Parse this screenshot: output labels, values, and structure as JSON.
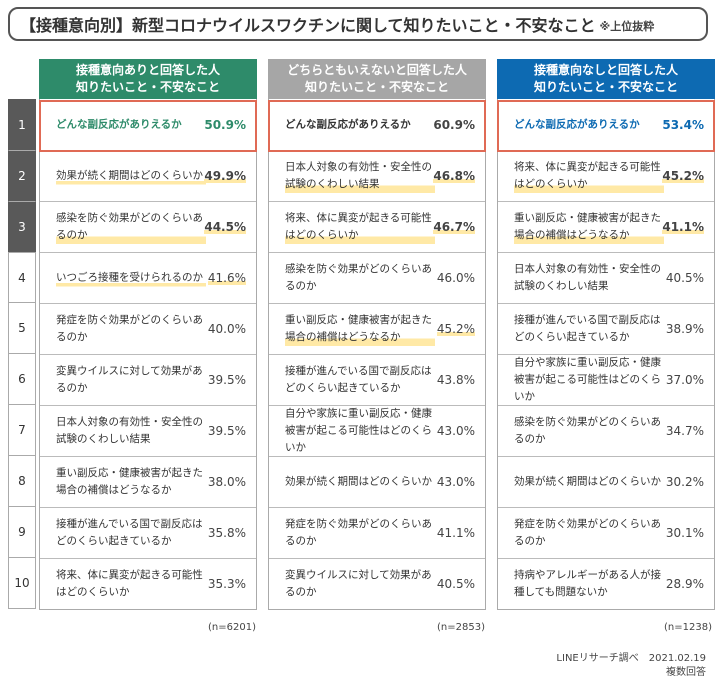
{
  "title": {
    "main": "【接種意向別】新型コロナウイルスワクチンに関して知りたいこと・不安なこと",
    "sub": "※上位抜粋"
  },
  "ranks": [
    "1",
    "2",
    "3",
    "4",
    "5",
    "6",
    "7",
    "8",
    "9",
    "10"
  ],
  "colors": {
    "green": "#2e8b6a",
    "gray": "#a6a6a6",
    "blue": "#0d6ab2",
    "red": "#e06a55",
    "dark": "#595959"
  },
  "groups": [
    {
      "header_line1": "接種意向ありと回答した人",
      "header_line2": "知りたいこと・不安なこと",
      "n": "(n=6201)",
      "rows": [
        {
          "label": "どんな副反応がありえるか",
          "pct": "50.9%"
        },
        {
          "label": "効果が続く期間はどのくらいか",
          "pct": "49.9%"
        },
        {
          "label": "感染を防ぐ効果がどのくらいあるのか",
          "pct": "44.5%"
        },
        {
          "label": "いつごろ接種を受けられるのか",
          "pct": "41.6%"
        },
        {
          "label": "発症を防ぐ効果がどのくらいあるのか",
          "pct": "40.0%"
        },
        {
          "label": "変異ウイルスに対して効果があるのか",
          "pct": "39.5%"
        },
        {
          "label": "日本人対象の有効性・安全性の試験のくわしい結果",
          "pct": "39.5%"
        },
        {
          "label": "重い副反応・健康被害が起きた場合の補償はどうなるか",
          "pct": "38.0%"
        },
        {
          "label": "接種が進んでいる国で副反応はどのくらい起きているか",
          "pct": "35.8%"
        },
        {
          "label": "将来、体に異変が起きる可能性はどのくらいか",
          "pct": "35.3%"
        }
      ]
    },
    {
      "header_line1": "どちらともいえないと回答した人",
      "header_line2": "知りたいこと・不安なこと",
      "n": "(n=2853)",
      "rows": [
        {
          "label": "どんな副反応がありえるか",
          "pct": "60.9%"
        },
        {
          "label": "日本人対象の有効性・安全性の試験のくわしい結果",
          "pct": "46.8%"
        },
        {
          "label": "将来、体に異変が起きる可能性はどのくらいか",
          "pct": "46.7%"
        },
        {
          "label": "感染を防ぐ効果がどのくらいあるのか",
          "pct": "46.0%"
        },
        {
          "label": "重い副反応・健康被害が起きた場合の補償はどうなるか",
          "pct": "45.2%"
        },
        {
          "label": "接種が進んでいる国で副反応はどのくらい起きているか",
          "pct": "43.8%"
        },
        {
          "label": "自分や家族に重い副反応・健康被害が起こる可能性はどのくらいか",
          "pct": "43.0%"
        },
        {
          "label": "効果が続く期間はどのくらいか",
          "pct": "43.0%"
        },
        {
          "label": "発症を防ぐ効果がどのくらいあるのか",
          "pct": "41.1%"
        },
        {
          "label": "変異ウイルスに対して効果があるのか",
          "pct": "40.5%"
        }
      ]
    },
    {
      "header_line1": "接種意向なしと回答した人",
      "header_line2": "知りたいこと・不安なこと",
      "n": "(n=1238)",
      "rows": [
        {
          "label": "どんな副反応がありえるか",
          "pct": "53.4%"
        },
        {
          "label": "将来、体に異変が起きる可能性はどのくらいか",
          "pct": "45.2%"
        },
        {
          "label": "重い副反応・健康被害が起きた場合の補償はどうなるか",
          "pct": "41.1%"
        },
        {
          "label": "日本人対象の有効性・安全性の試験のくわしい結果",
          "pct": "40.5%"
        },
        {
          "label": "接種が進んでいる国で副反応はどのくらい起きているか",
          "pct": "38.9%"
        },
        {
          "label": "自分や家族に重い副反応・健康被害が起こる可能性はどのくらいか",
          "pct": "37.0%"
        },
        {
          "label": "感染を防ぐ効果がどのくらいあるのか",
          "pct": "34.7%"
        },
        {
          "label": "効果が続く期間はどのくらいか",
          "pct": "30.2%"
        },
        {
          "label": "発症を防ぐ効果がどのくらいあるのか",
          "pct": "30.1%"
        },
        {
          "label": "持病やアレルギーがある人が接種しても問題ないか",
          "pct": "28.9%"
        }
      ]
    }
  ],
  "footer": {
    "source": "LINEリサーチ調べ　2021.02.19",
    "note": "複数回答"
  }
}
